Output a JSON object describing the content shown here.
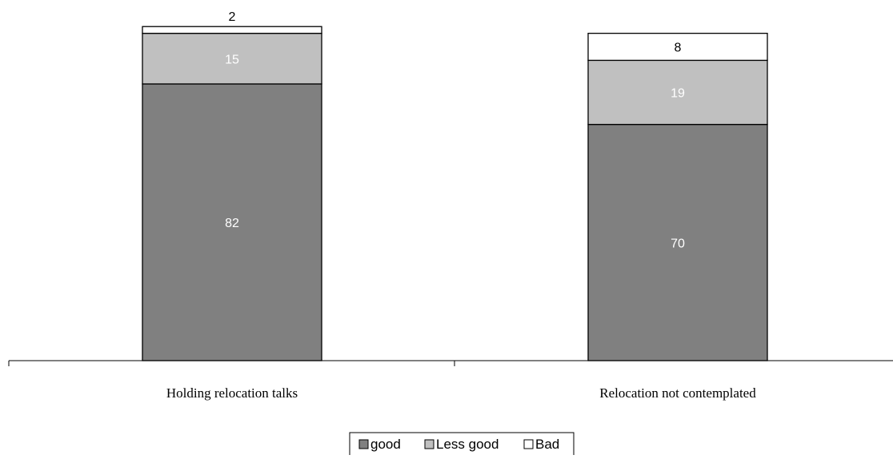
{
  "chart_data": {
    "type": "bar",
    "stacked": true,
    "categories": [
      "Holding relocation talks",
      "Relocation not contemplated"
    ],
    "series": [
      {
        "name": "good",
        "values": [
          82,
          70
        ],
        "color": "#808080",
        "label_color": "#ffffff"
      },
      {
        "name": "Less good",
        "values": [
          15,
          19
        ],
        "color": "#c0c0c0",
        "label_color": "#ffffff"
      },
      {
        "name": "Bad",
        "values": [
          2,
          8
        ],
        "color": "#ffffff",
        "label_color": "#000000"
      }
    ],
    "ylim": [
      0,
      100
    ],
    "grid": false,
    "legend": "bottom",
    "title": "",
    "xlabel": "",
    "ylabel": ""
  }
}
